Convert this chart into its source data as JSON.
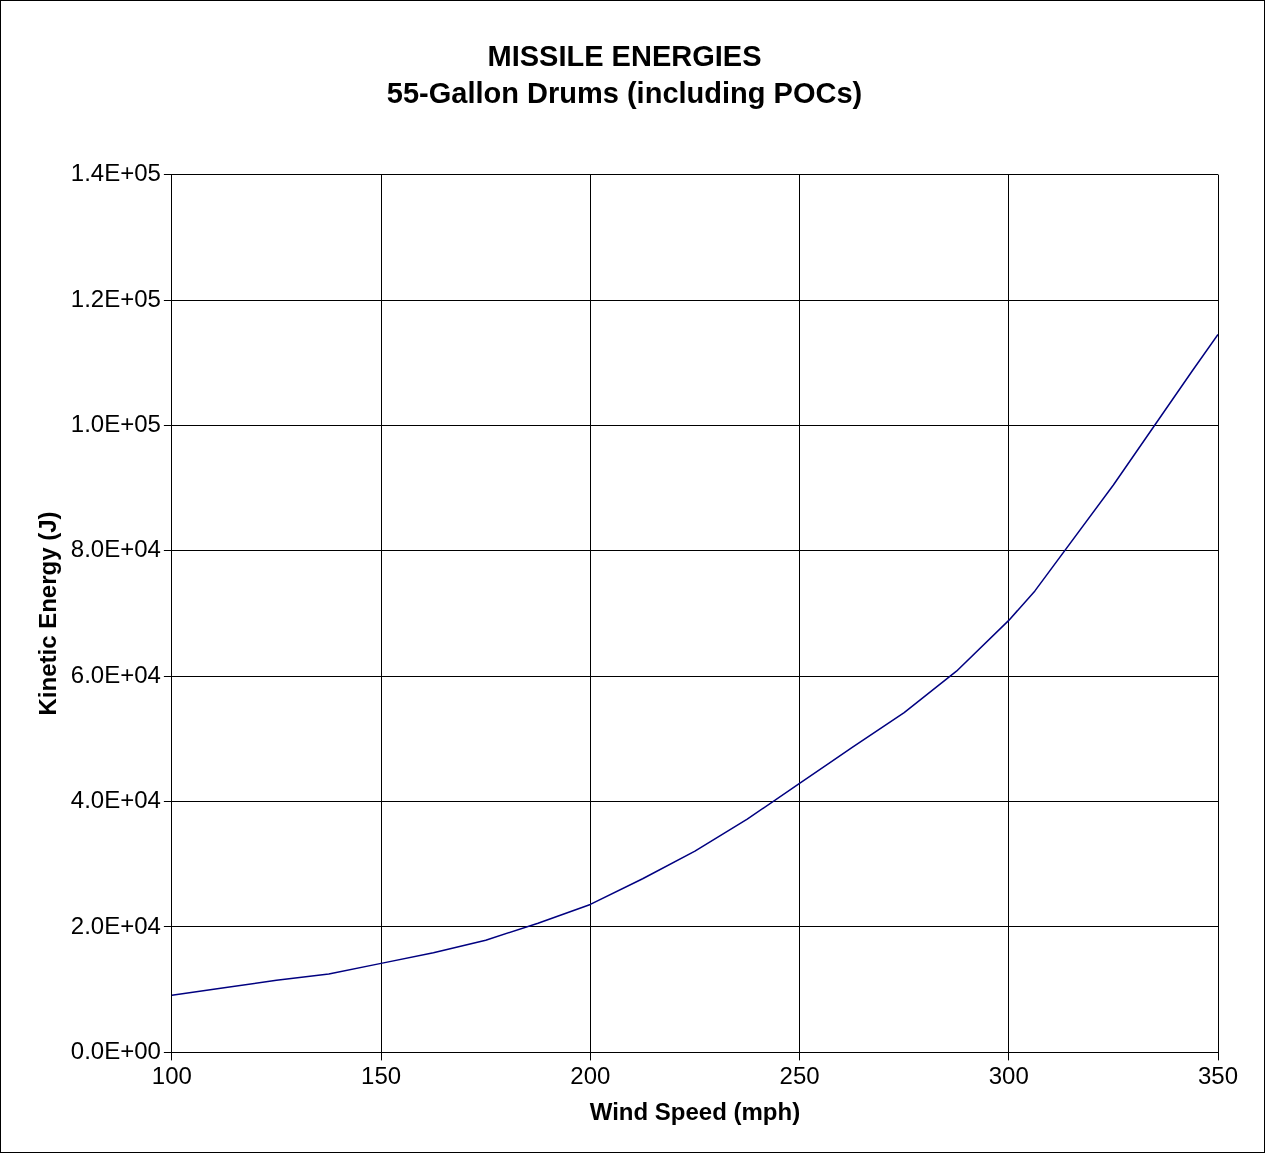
{
  "chart_data": {
    "type": "line",
    "title": "MISSILE ENERGIES",
    "subtitle": "55-Gallon Drums (including POCs)",
    "xlabel": "Wind Speed (mph)",
    "ylabel": "Kinetic Energy (J)",
    "x": [
      100,
      112.5,
      125,
      137.5,
      150,
      162.5,
      175,
      187.5,
      200,
      212.5,
      225,
      237.5,
      250,
      262.5,
      275,
      287.5,
      300,
      306.25,
      325,
      343.75,
      350
    ],
    "series": [
      {
        "color": "#000080",
        "values": [
          9100,
          10300,
          11500,
          12500,
          14200,
          15900,
          17900,
          20600,
          23600,
          27700,
          32100,
          37200,
          42900,
          48600,
          54200,
          60800,
          68900,
          73600,
          90500,
          108600,
          114500
        ]
      }
    ],
    "xlim": [
      100,
      350
    ],
    "xticks": [
      100,
      150,
      200,
      250,
      300,
      350
    ],
    "ylim": [
      0,
      140000
    ],
    "yticks": [
      {
        "value": 0,
        "label": "0.0E+00"
      },
      {
        "value": 20000,
        "label": "2.0E+04"
      },
      {
        "value": 40000,
        "label": "4.0E+04"
      },
      {
        "value": 60000,
        "label": "6.0E+04"
      },
      {
        "value": 80000,
        "label": "8.0E+04"
      },
      {
        "value": 100000,
        "label": "1.0E+05"
      },
      {
        "value": 120000,
        "label": "1.2E+05"
      },
      {
        "value": 140000,
        "label": "1.4E+05"
      }
    ],
    "grid": true,
    "legend": false,
    "marker": "none",
    "line_style": "solid"
  }
}
